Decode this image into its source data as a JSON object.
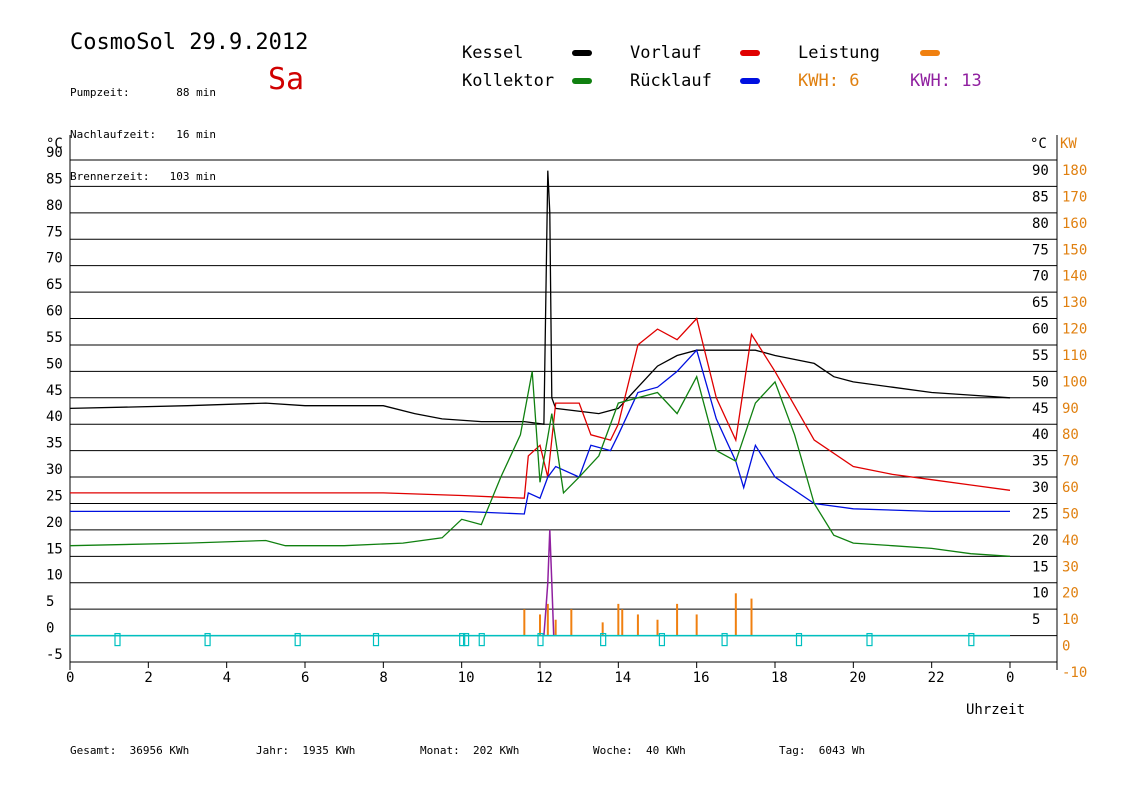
{
  "header": {
    "title": "CosmoSol 29.9.2012",
    "day": "Sa",
    "stats": [
      {
        "label": "Pumpzeit:",
        "value": "88 min"
      },
      {
        "label": "Nachlaufzeit:",
        "value": "16 min"
      },
      {
        "label": "Brennerzeit:",
        "value": "103 min"
      }
    ]
  },
  "legend": {
    "kessel": {
      "label": "Kessel",
      "color": "#000000"
    },
    "vorlauf": {
      "label": "Vorlauf",
      "color": "#e00000"
    },
    "leistung": {
      "label": "Leistung",
      "color": "#f08010"
    },
    "kollektor": {
      "label": "Kollektor",
      "color": "#108010"
    },
    "ruecklauf": {
      "label": "Rücklauf",
      "color": "#0010e0"
    },
    "kwh1": {
      "label": "KWH:",
      "value": "6",
      "color": "#e08010"
    },
    "kwh2": {
      "label": "KWH:",
      "value": "13",
      "color": "#9020a0"
    }
  },
  "footer": [
    {
      "label": "Gesamt:",
      "value": "36956 KWh"
    },
    {
      "label": "Jahr:",
      "value": "1935 KWh"
    },
    {
      "label": "Monat:",
      "value": "202 KWh"
    },
    {
      "label": "Woche:",
      "value": "40 KWh"
    },
    {
      "label": "Tag:",
      "value": "6043 Wh"
    }
  ],
  "chart_data": {
    "type": "line",
    "xlabel": "Uhrzeit",
    "ylabel": "°C",
    "y2label": "KW",
    "xlim": [
      0,
      24
    ],
    "ylim": [
      -5,
      95
    ],
    "y2lim": [
      -10,
      190
    ],
    "x_ticks": [
      "0",
      "2",
      "4",
      "6",
      "8",
      "10",
      "12",
      "14",
      "16",
      "18",
      "20",
      "22",
      "0"
    ],
    "y_ticks_left": [
      "90",
      "85",
      "80",
      "75",
      "70",
      "65",
      "60",
      "55",
      "50",
      "45",
      "40",
      "35",
      "30",
      "25",
      "20",
      "15",
      "10",
      "5",
      "0",
      "-5"
    ],
    "y_ticks_right": [
      "90",
      "85",
      "80",
      "75",
      "70",
      "65",
      "60",
      "55",
      "50",
      "45",
      "40",
      "35",
      "30",
      "25",
      "20",
      "15",
      "10",
      "5"
    ],
    "y2_ticks": [
      "180",
      "170",
      "160",
      "150",
      "140",
      "130",
      "120",
      "110",
      "100",
      "90",
      "80",
      "70",
      "60",
      "50",
      "40",
      "30",
      "20",
      "10",
      "0",
      "-10"
    ],
    "grid": true,
    "series": [
      {
        "name": "Kessel",
        "color": "#000000",
        "x": [
          0,
          3,
          5,
          6,
          8,
          8.8,
          9.5,
          10.5,
          11.6,
          12.1,
          12.2,
          12.25,
          12.3,
          12.4,
          13.5,
          14,
          14.5,
          15,
          15.5,
          16,
          17,
          17.5,
          18,
          19,
          19.5,
          20,
          21,
          22,
          23,
          24
        ],
        "y": [
          43,
          43.5,
          44,
          43.5,
          43.5,
          42,
          41,
          40.5,
          40.5,
          40,
          88,
          80,
          45,
          43,
          42,
          43,
          47,
          51,
          53,
          54,
          54,
          54,
          53,
          51.5,
          49,
          48,
          47,
          46,
          45.5,
          45
        ]
      },
      {
        "name": "Vorlauf",
        "color": "#e00000",
        "x": [
          0,
          8,
          10,
          11.6,
          11.7,
          12,
          12.2,
          12.4,
          13,
          13.3,
          13.8,
          14,
          14.5,
          15,
          15.5,
          16,
          16.5,
          17,
          17.4,
          18,
          19,
          20,
          21,
          22,
          23,
          24
        ],
        "y": [
          27,
          27,
          26.5,
          26,
          34,
          36,
          30,
          44,
          44,
          38,
          37,
          40,
          55,
          58,
          56,
          60,
          45,
          37,
          57,
          50,
          37,
          32,
          30.5,
          29.5,
          28.5,
          27.5
        ]
      },
      {
        "name": "Rücklauf",
        "color": "#0010e0",
        "x": [
          0,
          8,
          10,
          11.6,
          11.7,
          12,
          12.2,
          12.4,
          13,
          13.3,
          13.8,
          14,
          14.5,
          15,
          15.5,
          16,
          16.5,
          17,
          17.2,
          17.5,
          18,
          19,
          20,
          22,
          24
        ],
        "y": [
          23.5,
          23.5,
          23.5,
          23,
          27,
          26,
          30,
          32,
          30,
          36,
          35,
          38,
          46,
          47,
          50,
          54,
          41,
          33,
          28,
          36,
          30,
          25,
          24,
          23.5,
          23.5
        ]
      },
      {
        "name": "Kollektor",
        "color": "#108010",
        "x": [
          0,
          3,
          5,
          5.5,
          7,
          8.5,
          9.5,
          10,
          10.5,
          11,
          11.5,
          11.8,
          12,
          12.3,
          12.6,
          13,
          13.5,
          14,
          14.5,
          15,
          15.5,
          16,
          16.5,
          17,
          17.5,
          18,
          18.5,
          19,
          19.5,
          20,
          21,
          22,
          23,
          24
        ],
        "y": [
          17,
          17.5,
          18,
          17,
          17,
          17.5,
          18.5,
          22,
          21,
          30,
          38,
          50,
          29,
          42,
          27,
          30,
          34,
          44,
          45,
          46,
          42,
          49,
          35,
          33,
          44,
          48,
          38,
          25,
          19,
          17.5,
          17,
          16.5,
          15.5,
          15
        ]
      },
      {
        "name": "Leistung",
        "color": "#f08010",
        "x": [
          11.6,
          12.0,
          12.2,
          12.4,
          12.8,
          13.6,
          14.0,
          14.1,
          14.5,
          15.0,
          15.5,
          16.0,
          17.0,
          17.4
        ],
        "y2": [
          10,
          8,
          12,
          6,
          10,
          5,
          12,
          10,
          8,
          6,
          12,
          8,
          16,
          14
        ]
      }
    ],
    "kwh_line": {
      "name": "KWH",
      "color": "#9020a0",
      "x": [
        12.1,
        12.15,
        12.2,
        12.25,
        12.3,
        12.35
      ],
      "y": [
        0,
        10,
        20,
        40,
        20,
        0
      ]
    },
    "markers": {
      "name": "Pumpzeit",
      "color": "#00c0c0",
      "x": [
        1.2,
        3.5,
        5.8,
        7.8,
        10.0,
        10.1,
        10.5,
        12.0,
        13.6,
        15.1,
        16.7,
        18.6,
        20.4,
        23.0
      ]
    }
  }
}
